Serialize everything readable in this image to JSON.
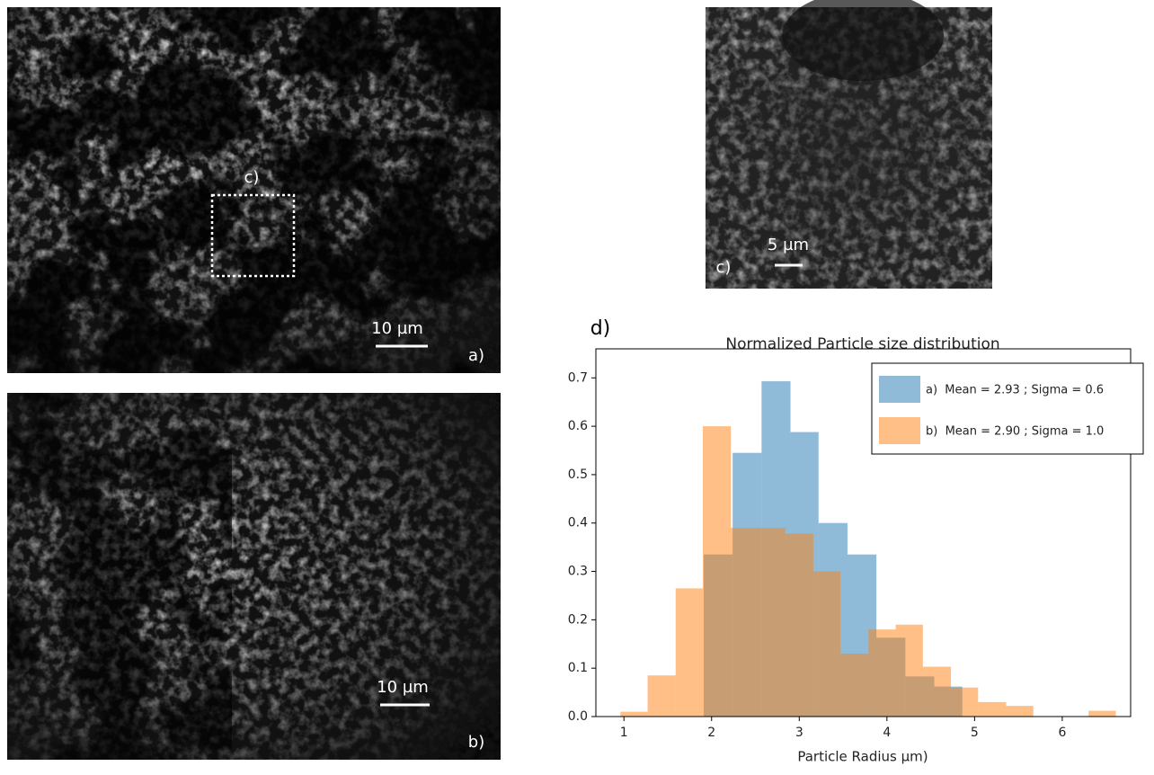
{
  "panels": {
    "a": {
      "roi_label": "c)",
      "scale_bar": "10 µm",
      "label": "a)"
    },
    "b": {
      "scale_bar": "10 µm",
      "label": "b)"
    },
    "c": {
      "scale_bar": "5 µm",
      "label": "c)"
    },
    "d": {
      "label": "d)"
    }
  },
  "chart_data": {
    "type": "histogram",
    "title": "Normalized Particle size distribution",
    "x_label": "Particle Radius $\\mu$m)",
    "xlim": [
      0.68,
      6.78
    ],
    "ylim": [
      0,
      0.76
    ],
    "xticks": [
      1,
      2,
      3,
      4,
      5,
      6
    ],
    "yticks": [
      {
        "value": 0,
        "label": "0.0"
      },
      {
        "value": 0.1,
        "label": "0.1"
      },
      {
        "value": 0.2,
        "label": "0.2"
      },
      {
        "value": 0.3,
        "label": "0.3"
      },
      {
        "value": 0.4,
        "label": "0.4"
      },
      {
        "value": 0.5,
        "label": "0.5"
      },
      {
        "value": 0.6,
        "label": "0.6"
      },
      {
        "value": 0.7,
        "label": "0.7"
      }
    ],
    "legend": "upper right",
    "series": [
      {
        "name": "a)  Mean = 2.93 ; Sigma = 0.6",
        "color": "#1f77b4",
        "opacity": 0.5,
        "bins": [
          1.91,
          2.24,
          2.57,
          2.9,
          3.22,
          3.55,
          3.88,
          4.21,
          4.54,
          4.86
        ],
        "values": [
          0.335,
          0.545,
          0.693,
          0.588,
          0.4,
          0.335,
          0.163,
          0.083,
          0.062
        ]
      },
      {
        "name": "b)  Mean = 2.90 ; Sigma = 1.0",
        "color": "#ff7f0e",
        "opacity": 0.5,
        "bins": [
          0.96,
          1.27,
          1.59,
          1.9,
          2.22,
          2.53,
          2.84,
          3.16,
          3.47,
          3.79,
          4.1,
          4.41,
          4.73,
          5.04,
          5.36,
          5.67,
          5.98,
          6.3,
          6.61
        ],
        "values": [
          0.01,
          0.085,
          0.265,
          0.6,
          0.39,
          0.39,
          0.378,
          0.3,
          0.13,
          0.18,
          0.19,
          0.103,
          0.06,
          0.03,
          0.022,
          0,
          0,
          0.012
        ]
      }
    ]
  }
}
